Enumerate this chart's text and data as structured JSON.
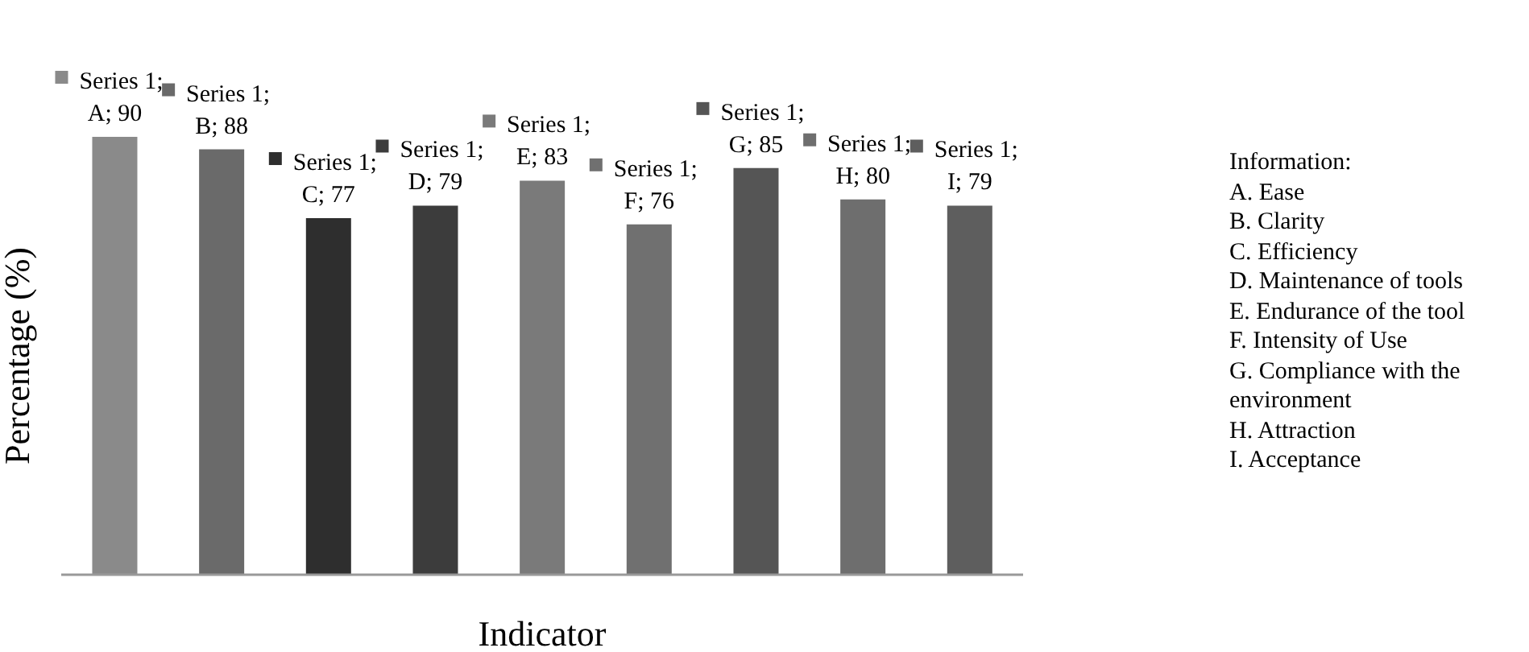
{
  "chart_data": {
    "type": "bar",
    "xlabel": "Indicator",
    "ylabel": "Percentage (%)",
    "categories": [
      null,
      null,
      null,
      null,
      null,
      null,
      null,
      null,
      null
    ],
    "series": [
      {
        "colors": [
          "#8a8a8a",
          "#6a6a6a",
          "#2e2e2e",
          "#3c3c3c",
          "#7a7a7a",
          "#707070",
          "#555555",
          "#6e6e6e",
          "#5e5e5e"
        ],
        "values": [
          90,
          88,
          77,
          79,
          83,
          76,
          85,
          80,
          79
        ],
        "value_labels": [
          "Series 1; A; 90",
          "Series 1; B; 88",
          "Series 1; C; 77",
          "Series 1; D; 79",
          "Series 1; E; 83",
          "Series 1; F; 76",
          "Series 1; G; 85",
          "Series 1; H; 80",
          "Series 1; I; 79"
        ]
      }
    ],
    "ylim": [
      20,
      90
    ],
    "legend": false,
    "grid": false,
    "annotations": [
      "Information:",
      "A. Ease",
      "B. Clarity",
      "C. Efficiency",
      "D. Maintenance of tools",
      "E. Endurance of the tool",
      "F. Intensity of Use",
      "G. Compliance with the environment",
      "H. Attraction",
      "I. Acceptance"
    ]
  }
}
